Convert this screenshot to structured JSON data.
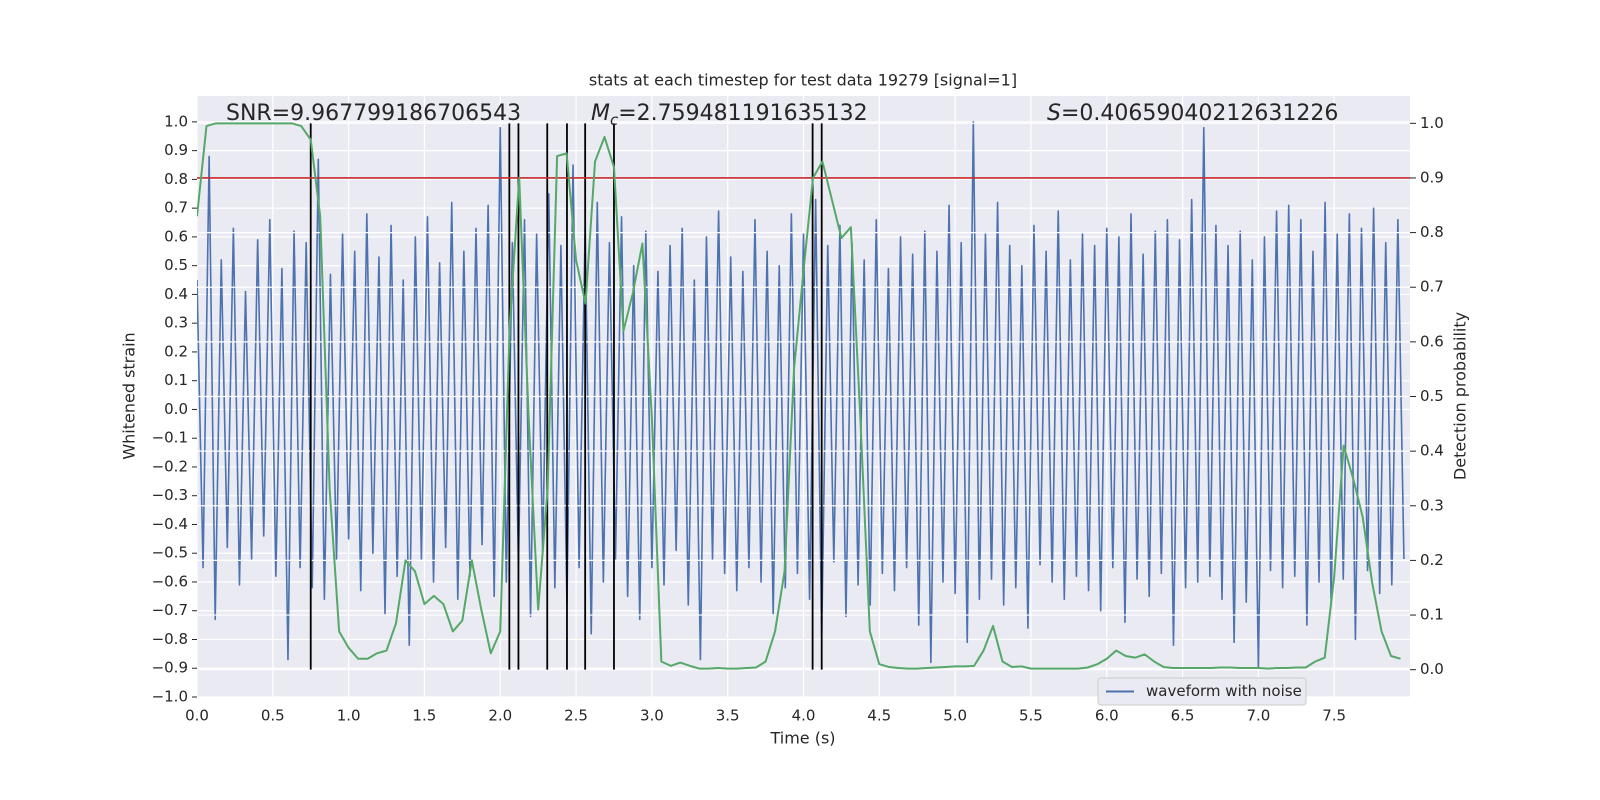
{
  "chart_data": {
    "type": "line",
    "title": "stats at each timestep for test data 19279 [signal=1]",
    "xlabel": "Time (s)",
    "ylabel": "Whitened strain",
    "y2label": "Detection probability",
    "xlim": [
      0,
      8
    ],
    "ylim": [
      -1.0,
      1.09
    ],
    "y2lim": [
      -0.05,
      1.05
    ],
    "xticks": [
      {
        "value": 0,
        "label": "0.0"
      },
      0.5,
      {
        "value": 1,
        "label": "1.0"
      },
      1.5,
      {
        "value": 2,
        "label": "2.0"
      },
      2.5,
      {
        "value": 3,
        "label": "3.0"
      },
      3.5,
      {
        "value": 4,
        "label": "4.0"
      },
      4.5,
      {
        "value": 5,
        "label": "5.0"
      },
      5.5,
      {
        "value": 6,
        "label": "6.0"
      },
      6.5,
      {
        "value": 7,
        "label": "7.0"
      },
      7.5
    ],
    "yticks": [
      {
        "value": -1.0,
        "label": "−1.0"
      },
      {
        "value": -0.9,
        "label": "−0.9"
      },
      {
        "value": -0.8,
        "label": "−0.8"
      },
      {
        "value": -0.7,
        "label": "−0.7"
      },
      {
        "value": -0.6,
        "label": "−0.6"
      },
      {
        "value": -0.5,
        "label": "−0.5"
      },
      {
        "value": -0.4,
        "label": "−0.4"
      },
      {
        "value": -0.3,
        "label": "−0.3"
      },
      {
        "value": -0.2,
        "label": "−0.2"
      },
      {
        "value": -0.1,
        "label": "−0.1"
      },
      {
        "value": 0,
        "label": "0.0"
      },
      0.1,
      0.2,
      0.3,
      0.4,
      0.5,
      0.6,
      0.7,
      0.8,
      0.9,
      {
        "value": 1,
        "label": "1.0"
      }
    ],
    "y2ticks": [
      {
        "value": 0,
        "label": "0.0"
      },
      0.1,
      0.2,
      0.3,
      0.4,
      0.5,
      0.6,
      0.7,
      0.8,
      0.9,
      {
        "value": 1,
        "label": "1.0"
      }
    ],
    "grid": true,
    "y2grid": true,
    "legend": "lower right",
    "series": [
      {
        "name": "waveform with noise",
        "color": "#4c72b0",
        "axis": "y",
        "x": [
          0,
          0.04,
          0.08,
          0.12,
          0.16,
          0.2,
          0.24,
          0.28,
          0.32,
          0.36,
          0.4,
          0.44,
          0.48,
          0.52,
          0.56,
          0.6,
          0.64,
          0.68,
          0.72,
          0.76,
          0.8,
          0.84,
          0.88,
          0.92,
          0.96,
          1,
          1.04,
          1.08,
          1.12,
          1.16,
          1.2,
          1.24,
          1.28,
          1.32,
          1.36,
          1.4,
          1.44,
          1.48,
          1.52,
          1.56,
          1.6,
          1.64,
          1.68,
          1.72,
          1.76,
          1.8,
          1.84,
          1.88,
          1.92,
          1.96,
          2,
          2.04,
          2.08,
          2.12,
          2.16,
          2.2,
          2.24,
          2.28,
          2.32,
          2.36,
          2.4,
          2.44,
          2.48,
          2.52,
          2.56,
          2.6,
          2.64,
          2.68,
          2.72,
          2.76,
          2.8,
          2.84,
          2.88,
          2.92,
          2.96,
          3,
          3.04,
          3.08,
          3.12,
          3.16,
          3.2,
          3.24,
          3.28,
          3.32,
          3.36,
          3.4,
          3.44,
          3.48,
          3.52,
          3.56,
          3.6,
          3.64,
          3.68,
          3.72,
          3.76,
          3.8,
          3.84,
          3.88,
          3.92,
          3.96,
          4,
          4.04,
          4.08,
          4.12,
          4.16,
          4.2,
          4.24,
          4.28,
          4.32,
          4.36,
          4.4,
          4.44,
          4.48,
          4.52,
          4.56,
          4.6,
          4.64,
          4.68,
          4.72,
          4.76,
          4.8,
          4.84,
          4.88,
          4.92,
          4.96,
          5,
          5.04,
          5.08,
          5.12,
          5.16,
          5.2,
          5.24,
          5.28,
          5.32,
          5.36,
          5.4,
          5.44,
          5.48,
          5.52,
          5.56,
          5.6,
          5.64,
          5.68,
          5.72,
          5.76,
          5.8,
          5.84,
          5.88,
          5.92,
          5.96,
          6,
          6.04,
          6.08,
          6.12,
          6.16,
          6.2,
          6.24,
          6.28,
          6.32,
          6.36,
          6.4,
          6.44,
          6.48,
          6.52,
          6.56,
          6.6,
          6.64,
          6.68,
          6.72,
          6.76,
          6.8,
          6.84,
          6.88,
          6.92,
          6.96,
          7,
          7.04,
          7.08,
          7.12,
          7.16,
          7.2,
          7.24,
          7.28,
          7.32,
          7.36,
          7.4,
          7.44,
          7.48,
          7.52,
          7.56,
          7.6,
          7.64,
          7.68,
          7.72,
          7.76,
          7.8,
          7.84,
          7.88,
          7.92,
          7.96
        ],
        "values": [
          0.45,
          -0.55,
          0.88,
          -0.73,
          0.52,
          -0.48,
          0.63,
          -0.61,
          0.41,
          -0.52,
          0.59,
          -0.44,
          0.66,
          -0.58,
          0.49,
          -0.87,
          0.62,
          -0.55,
          0.58,
          -0.62,
          0.87,
          -0.66,
          0.47,
          -0.52,
          0.61,
          -0.45,
          0.55,
          -0.63,
          0.68,
          -0.5,
          0.53,
          -0.71,
          0.64,
          -0.58,
          0.45,
          -0.82,
          0.6,
          -0.52,
          0.67,
          -0.6,
          0.51,
          -0.48,
          0.72,
          -0.66,
          0.55,
          -0.58,
          0.63,
          -0.47,
          0.71,
          -0.65,
          0.98,
          -0.6,
          0.58,
          -0.54,
          0.66,
          -0.72,
          0.61,
          -0.5,
          0.75,
          -0.62,
          0.57,
          -0.68,
          0.85,
          -0.55,
          0.63,
          -0.78,
          0.72,
          -0.6,
          0.58,
          -0.52,
          0.67,
          -0.65,
          0.5,
          -0.73,
          0.62,
          -0.55,
          0.48,
          -0.61,
          0.57,
          -0.49,
          0.63,
          -0.68,
          0.45,
          -0.87,
          0.6,
          -0.52,
          0.69,
          -0.57,
          0.53,
          -0.63,
          0.48,
          -0.55,
          0.66,
          -0.6,
          0.55,
          -0.71,
          0.5,
          -0.62,
          0.68,
          -0.57,
          0.61,
          -0.66,
          0.73,
          -0.79,
          0.57,
          -0.53,
          0.64,
          -0.72,
          0.58,
          -0.61,
          0.52,
          -0.68,
          0.66,
          -0.57,
          0.49,
          -0.63,
          0.6,
          -0.55,
          0.54,
          -0.75,
          0.62,
          -0.88,
          0.55,
          -0.6,
          0.71,
          -0.64,
          0.58,
          -0.81,
          1.0,
          -0.66,
          0.61,
          -0.59,
          0.72,
          -0.68,
          0.57,
          -0.62,
          0.5,
          -0.76,
          0.64,
          -0.54,
          0.55,
          -0.6,
          0.69,
          -0.66,
          0.52,
          -0.58,
          0.61,
          -0.63,
          0.57,
          -0.7,
          0.63,
          -0.55,
          0.6,
          -0.74,
          0.68,
          -0.59,
          0.54,
          -0.65,
          0.62,
          -0.57,
          0.66,
          -0.82,
          0.59,
          -0.62,
          0.73,
          -0.6,
          0.98,
          -0.58,
          0.64,
          -0.66,
          0.57,
          -0.81,
          0.62,
          -0.67,
          0.52,
          -0.9,
          0.6,
          -0.56,
          0.69,
          -0.62,
          0.71,
          -0.58,
          0.66,
          -0.75,
          0.55,
          -0.6,
          0.72,
          -0.68,
          0.61,
          -0.59,
          0.68,
          -0.8,
          0.63,
          -0.56,
          0.7,
          -0.64,
          0.58,
          -0.61,
          0.66,
          -0.52
        ]
      },
      {
        "color": "#55a868",
        "axis": "y2",
        "x": [
          0,
          0.0625,
          0.125,
          0.1875,
          0.25,
          0.3125,
          0.375,
          0.4375,
          0.5,
          0.5625,
          0.625,
          0.6875,
          0.75,
          0.8125,
          0.875,
          0.9375,
          1,
          1.0625,
          1.125,
          1.1875,
          1.25,
          1.3125,
          1.375,
          1.4375,
          1.5,
          1.5625,
          1.625,
          1.6875,
          1.75,
          1.8125,
          1.875,
          1.9375,
          2,
          2.0625,
          2.125,
          2.1875,
          2.25,
          2.3125,
          2.375,
          2.4375,
          2.5,
          2.5625,
          2.625,
          2.6875,
          2.75,
          2.8125,
          2.875,
          2.9375,
          3,
          3.0625,
          3.125,
          3.1875,
          3.25,
          3.3125,
          3.375,
          3.4375,
          3.5,
          3.5625,
          3.625,
          3.6875,
          3.75,
          3.8125,
          3.875,
          3.9375,
          4,
          4.0625,
          4.125,
          4.1875,
          4.25,
          4.3125,
          4.375,
          4.4375,
          4.5,
          4.5625,
          4.625,
          4.6875,
          4.75,
          4.8125,
          4.875,
          4.9375,
          5,
          5.0625,
          5.125,
          5.1875,
          5.25,
          5.3125,
          5.375,
          5.4375,
          5.5,
          5.5625,
          5.625,
          5.6875,
          5.75,
          5.8125,
          5.875,
          5.9375,
          6,
          6.0625,
          6.125,
          6.1875,
          6.25,
          6.3125,
          6.375,
          6.4375,
          6.5,
          6.5625,
          6.625,
          6.6875,
          6.75,
          6.8125,
          6.875,
          6.9375,
          7,
          7.0625,
          7.125,
          7.1875,
          7.25,
          7.3125,
          7.375,
          7.4375,
          7.5,
          7.5625,
          7.625,
          7.6875,
          7.75,
          7.8125,
          7.875,
          7.9375
        ],
        "values": [
          0.83,
          0.995,
          1.0,
          1.0,
          1.0,
          1.0,
          1.0,
          1.0,
          1.0,
          1.0,
          1.0,
          0.995,
          0.97,
          0.83,
          0.33,
          0.07,
          0.04,
          0.02,
          0.02,
          0.03,
          0.035,
          0.085,
          0.2,
          0.18,
          0.12,
          0.135,
          0.12,
          0.07,
          0.09,
          0.2,
          0.11,
          0.03,
          0.07,
          0.63,
          0.9,
          0.46,
          0.11,
          0.33,
          0.94,
          0.945,
          0.75,
          0.67,
          0.93,
          0.975,
          0.92,
          0.62,
          0.69,
          0.78,
          0.46,
          0.015,
          0.007,
          0.013,
          0.007,
          0.002,
          0.002,
          0.003,
          0.002,
          0.002,
          0.003,
          0.004,
          0.015,
          0.07,
          0.18,
          0.55,
          0.73,
          0.9,
          0.93,
          0.86,
          0.79,
          0.81,
          0.46,
          0.07,
          0.01,
          0.005,
          0.003,
          0.002,
          0.002,
          0.003,
          0.004,
          0.005,
          0.006,
          0.006,
          0.007,
          0.035,
          0.08,
          0.015,
          0.005,
          0.006,
          0.002,
          0.002,
          0.002,
          0.002,
          0.002,
          0.002,
          0.004,
          0.01,
          0.02,
          0.035,
          0.025,
          0.022,
          0.028,
          0.015,
          0.005,
          0.003,
          0.003,
          0.003,
          0.003,
          0.003,
          0.004,
          0.004,
          0.003,
          0.003,
          0.003,
          0.002,
          0.003,
          0.003,
          0.004,
          0.004,
          0.015,
          0.022,
          0.17,
          0.41,
          0.35,
          0.28,
          0.16,
          0.07,
          0.025,
          0.02
        ]
      }
    ],
    "vlines": {
      "x": [
        0.75,
        2.06,
        2.12,
        2.31,
        2.44,
        2.56,
        2.75,
        4.06,
        4.12
      ],
      "ymin": 0,
      "ymax": 1,
      "axis": "y2",
      "color": "#000000"
    },
    "hlines": {
      "y": [
        0.9
      ],
      "axis": "y2",
      "color": "#c8282d"
    },
    "annotations": [
      {
        "text": "SNR=9.967799186706543"
      },
      {
        "symbol": "M",
        "subscript": "c",
        "text": "=2.759481191635132"
      },
      {
        "symbol": "S",
        "text": "=0.40659040212631226"
      }
    ]
  }
}
